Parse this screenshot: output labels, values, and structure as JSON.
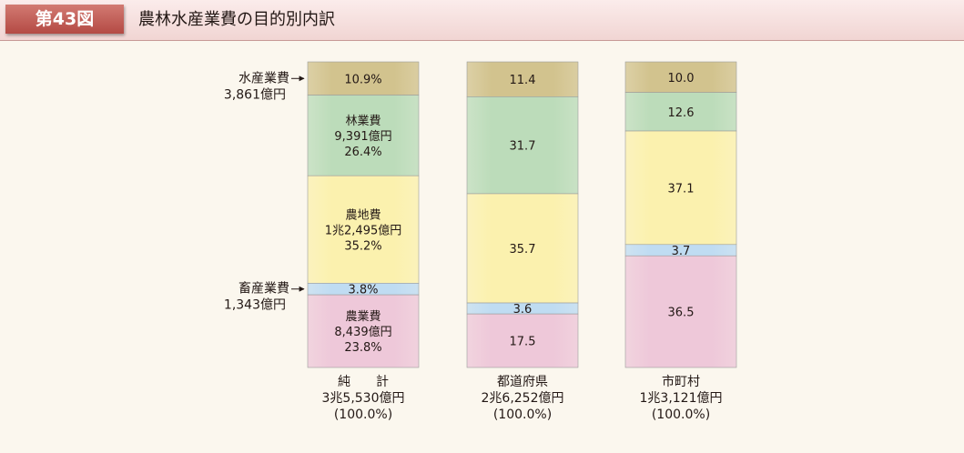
{
  "header": {
    "figure_label": "第43図",
    "title": "農林水産業費の目的別内訳"
  },
  "colors": {
    "水産業費": "#d2c38e",
    "林業費": "#bcdcba",
    "農地費": "#fbf1ae",
    "畜産業費": "#bfdcf2",
    "農業費": "#eec8d9"
  },
  "chart_data": {
    "type": "stacked-bar",
    "unit": "%",
    "categories": [
      "純　　計",
      "都道府県",
      "市町村"
    ],
    "category_totals": [
      "3兆5,530億円",
      "2兆6,252億円",
      "1兆3,121億円"
    ],
    "category_total_percents": [
      "(100.0%)",
      "(100.0%)",
      "(100.0%)"
    ],
    "series": [
      {
        "name": "水産業費",
        "values": [
          10.9,
          11.4,
          10.0
        ],
        "labels": [
          "10.9%",
          "11.4",
          "10.0"
        ]
      },
      {
        "name": "林業費",
        "values": [
          26.4,
          31.7,
          12.6
        ],
        "labels": [
          "26.4%",
          "31.7",
          "12.6"
        ]
      },
      {
        "name": "農地費",
        "values": [
          35.2,
          35.7,
          37.1
        ],
        "labels": [
          "35.2%",
          "35.7",
          "37.1"
        ]
      },
      {
        "name": "畜産業費",
        "values": [
          3.8,
          3.6,
          3.7
        ],
        "labels": [
          "3.8%",
          "3.6",
          "3.7"
        ]
      },
      {
        "name": "農業費",
        "values": [
          23.8,
          17.5,
          36.5
        ],
        "labels": [
          "23.8%",
          "17.5",
          "36.5"
        ]
      }
    ],
    "first_bar_details": {
      "林業費": [
        "林業費",
        "9,391億円"
      ],
      "農地費": [
        "農地費",
        "1兆2,495億円"
      ],
      "農業費": [
        "農業費",
        "8,439億円"
      ]
    },
    "callouts": [
      {
        "series": "水産業費",
        "name": "水産業費",
        "amount": "3,861億円"
      },
      {
        "series": "畜産業費",
        "name": "畜産業費",
        "amount": "1,343億円"
      }
    ]
  }
}
